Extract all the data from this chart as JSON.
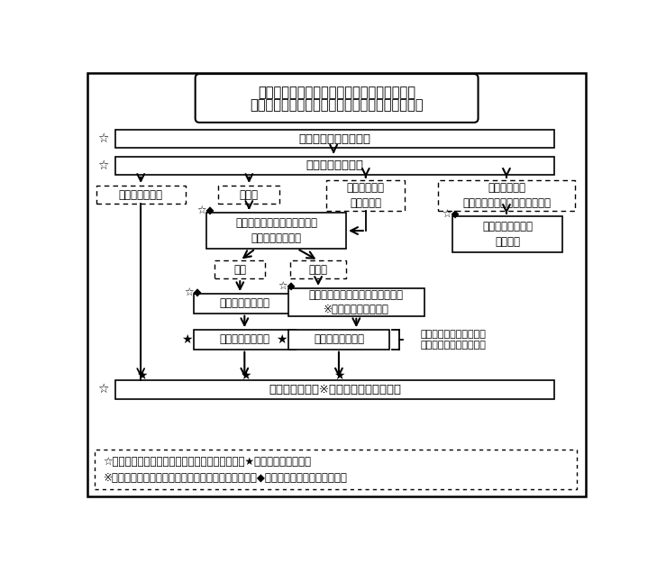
{
  "title_line1": "小学校在学者の転入・転居者の就学事務手続",
  "title_line2": "～区民事務所で転入届・転居届を受理した場合～",
  "box1_text": "転入届・転居届の提出",
  "box2_text": "就学希望校の確認",
  "dashed_box1": "通学区域の学校",
  "dashed_box2": "隣接校",
  "dashed_box3": "隣接校以外の\n区立小学校",
  "dashed_box4": "その他の学校\n（私立、当区以外の公立など）",
  "solid_box_center": "学校希望制度による申請が可\n能かどうかを確認",
  "solid_box_right": "必要な届出・申請\n等の案内",
  "dashed_box_ka": "可能",
  "dashed_box_fuka": "不可能",
  "solid_box_kibou": "希望申請書の交付",
  "solid_box_shitei": "就学校（通学区域の学校）の指定\n※転入学通知書の交付",
  "solid_box_kibou2": "希望申請書の受理",
  "solid_box_henko": "指定校変更の申立",
  "brace_text": "通学区域の学校以外への\n変更を認める場合に限る",
  "bottom_box": "就学校の指定　※転入学通知書等の交付",
  "legend_line1": "☆＝区民事務所（区役所出先機関）で処理　　　★＝教育委員会で処理",
  "legend_line2": "※転入・転居届を区役所（区民課）で受理した場合、◆の処理についても教育委員会",
  "bg_color": "#ffffff",
  "outer_border_lw": 1.5,
  "title_fontsize": 10.5,
  "main_fontsize": 9.5,
  "small_fontsize": 8.5,
  "marker_fontsize": 10
}
